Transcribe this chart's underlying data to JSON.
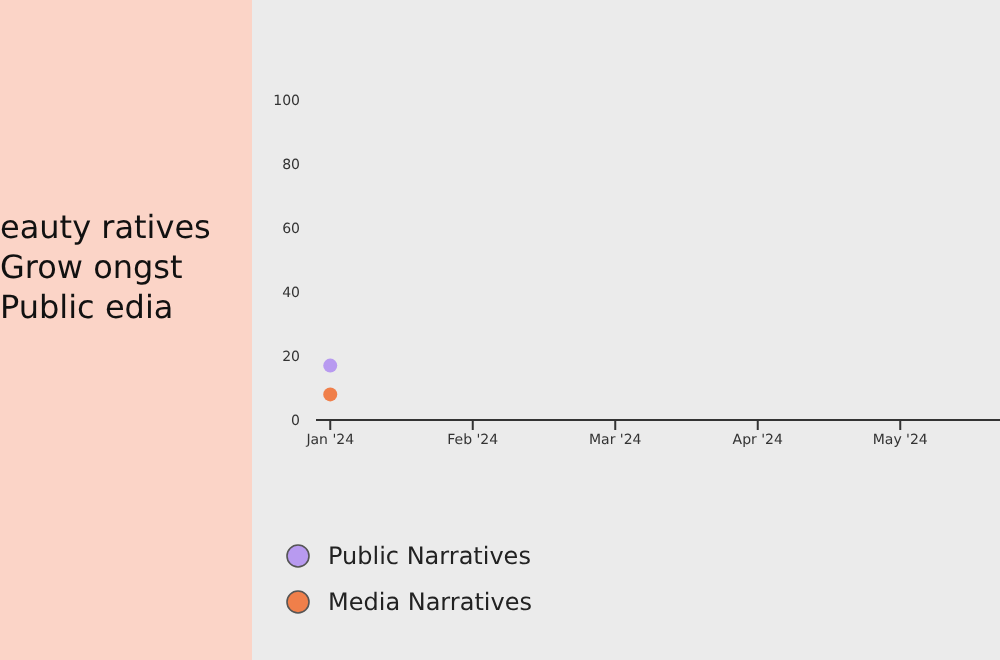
{
  "chart_data": {
    "type": "scatter",
    "title": "eauty ratives Grow ongst Public edia",
    "categories": [
      "Jan '24",
      "Feb '24",
      "Mar '24",
      "Apr '24",
      "May '24"
    ],
    "series": [
      {
        "name": "Public Narratives",
        "color": "#b89af0",
        "values": [
          17,
          null,
          null,
          null,
          null
        ]
      },
      {
        "name": "Media Narratives",
        "color": "#f07f4a",
        "values": [
          8,
          null,
          null,
          null,
          null
        ]
      }
    ],
    "ylim": [
      0,
      100
    ],
    "yticks": [
      0,
      20,
      40,
      60,
      80,
      100
    ],
    "legend": "bottom left",
    "marker": "circle"
  }
}
